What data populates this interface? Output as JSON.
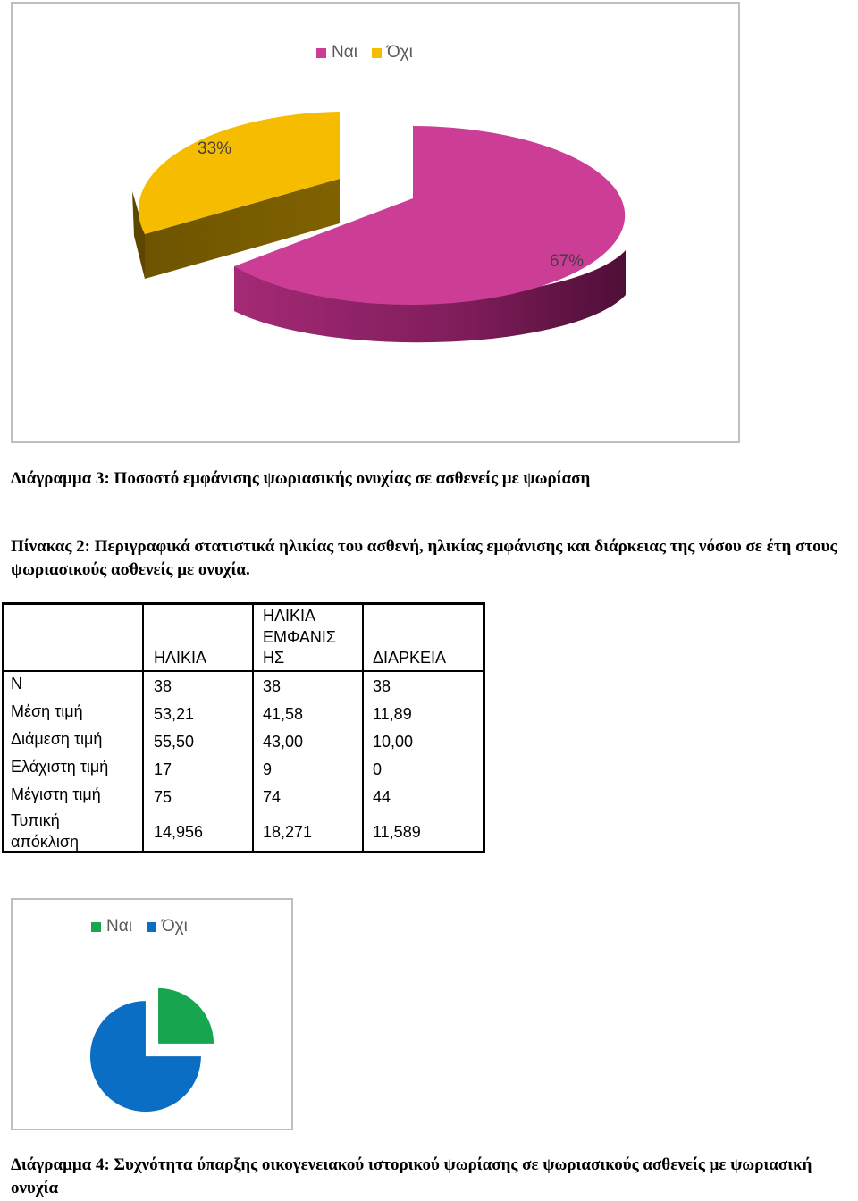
{
  "chart1": {
    "legend": [
      {
        "label": "Ναι",
        "color": "#cc3d95"
      },
      {
        "label": "Όχι",
        "color": "#f5bc00"
      }
    ],
    "labels": {
      "yes": "67%",
      "no": "33%"
    }
  },
  "caption3": "Διάγραμμα 3: Ποσοστό εμφάνισης ψωριασικής ονυχίας σε ασθενείς με ψωρίαση",
  "table_title": "Πίνακας 2: Περιγραφικά στατιστικά ηλικίας του ασθενή, ηλικίας εμφάνισης και διάρκειας της νόσου σε έτη στους ψωριασικούς ασθενείς με ονυχία.",
  "table": {
    "headers": [
      "",
      "ΗΛΙΚΙΑ",
      "ΗΛΙΚΙΑ ΕΜΦΑΝΙΣ ΗΣ",
      "ΔΙΑΡΚΕΙΑ"
    ],
    "header_line1": "ΗΛΙΚΙΑ",
    "header_line2": "ΕΜΦΑΝΙΣ",
    "header_line3": "ΗΣ",
    "rows": [
      {
        "label": "N",
        "values": [
          "38",
          "38",
          "38"
        ]
      },
      {
        "label": "Μέση τιμή",
        "values": [
          "53,21",
          "41,58",
          "11,89"
        ]
      },
      {
        "label": "Διάμεση τιμή",
        "values": [
          "55,50",
          "43,00",
          "10,00"
        ]
      },
      {
        "label": "Ελάχιστη τιμή",
        "values": [
          "17",
          "9",
          "0"
        ]
      },
      {
        "label": "Μέγιστη τιμή",
        "values": [
          "75",
          "74",
          "44"
        ]
      },
      {
        "label_line1": "Τυπική",
        "label_line2": "απόκλιση",
        "values": [
          "14,956",
          "18,271",
          "11,589"
        ]
      }
    ]
  },
  "chart2": {
    "legend": [
      {
        "label": "Ναι",
        "color": "#17a54f"
      },
      {
        "label": "Όχι",
        "color": "#0a6ec4"
      }
    ],
    "chart_data": {
      "type": "pie",
      "categories": [
        "Ναι",
        "Όχι"
      ],
      "values": [
        25,
        75
      ]
    }
  },
  "chart_data": [
    {
      "type": "pie",
      "categories": [
        "Ναι",
        "Όχι"
      ],
      "values": [
        67,
        33
      ]
    },
    {
      "type": "pie",
      "categories": [
        "Ναι",
        "Όχι"
      ],
      "values": [
        25,
        75
      ]
    }
  ],
  "caption4": "Διάγραμμα 4: Συχνότητα ύπαρξης οικογενειακού ιστορικού ψωρίασης σε ψωριασικούς ασθενείς με ψωριασική ονυχία"
}
